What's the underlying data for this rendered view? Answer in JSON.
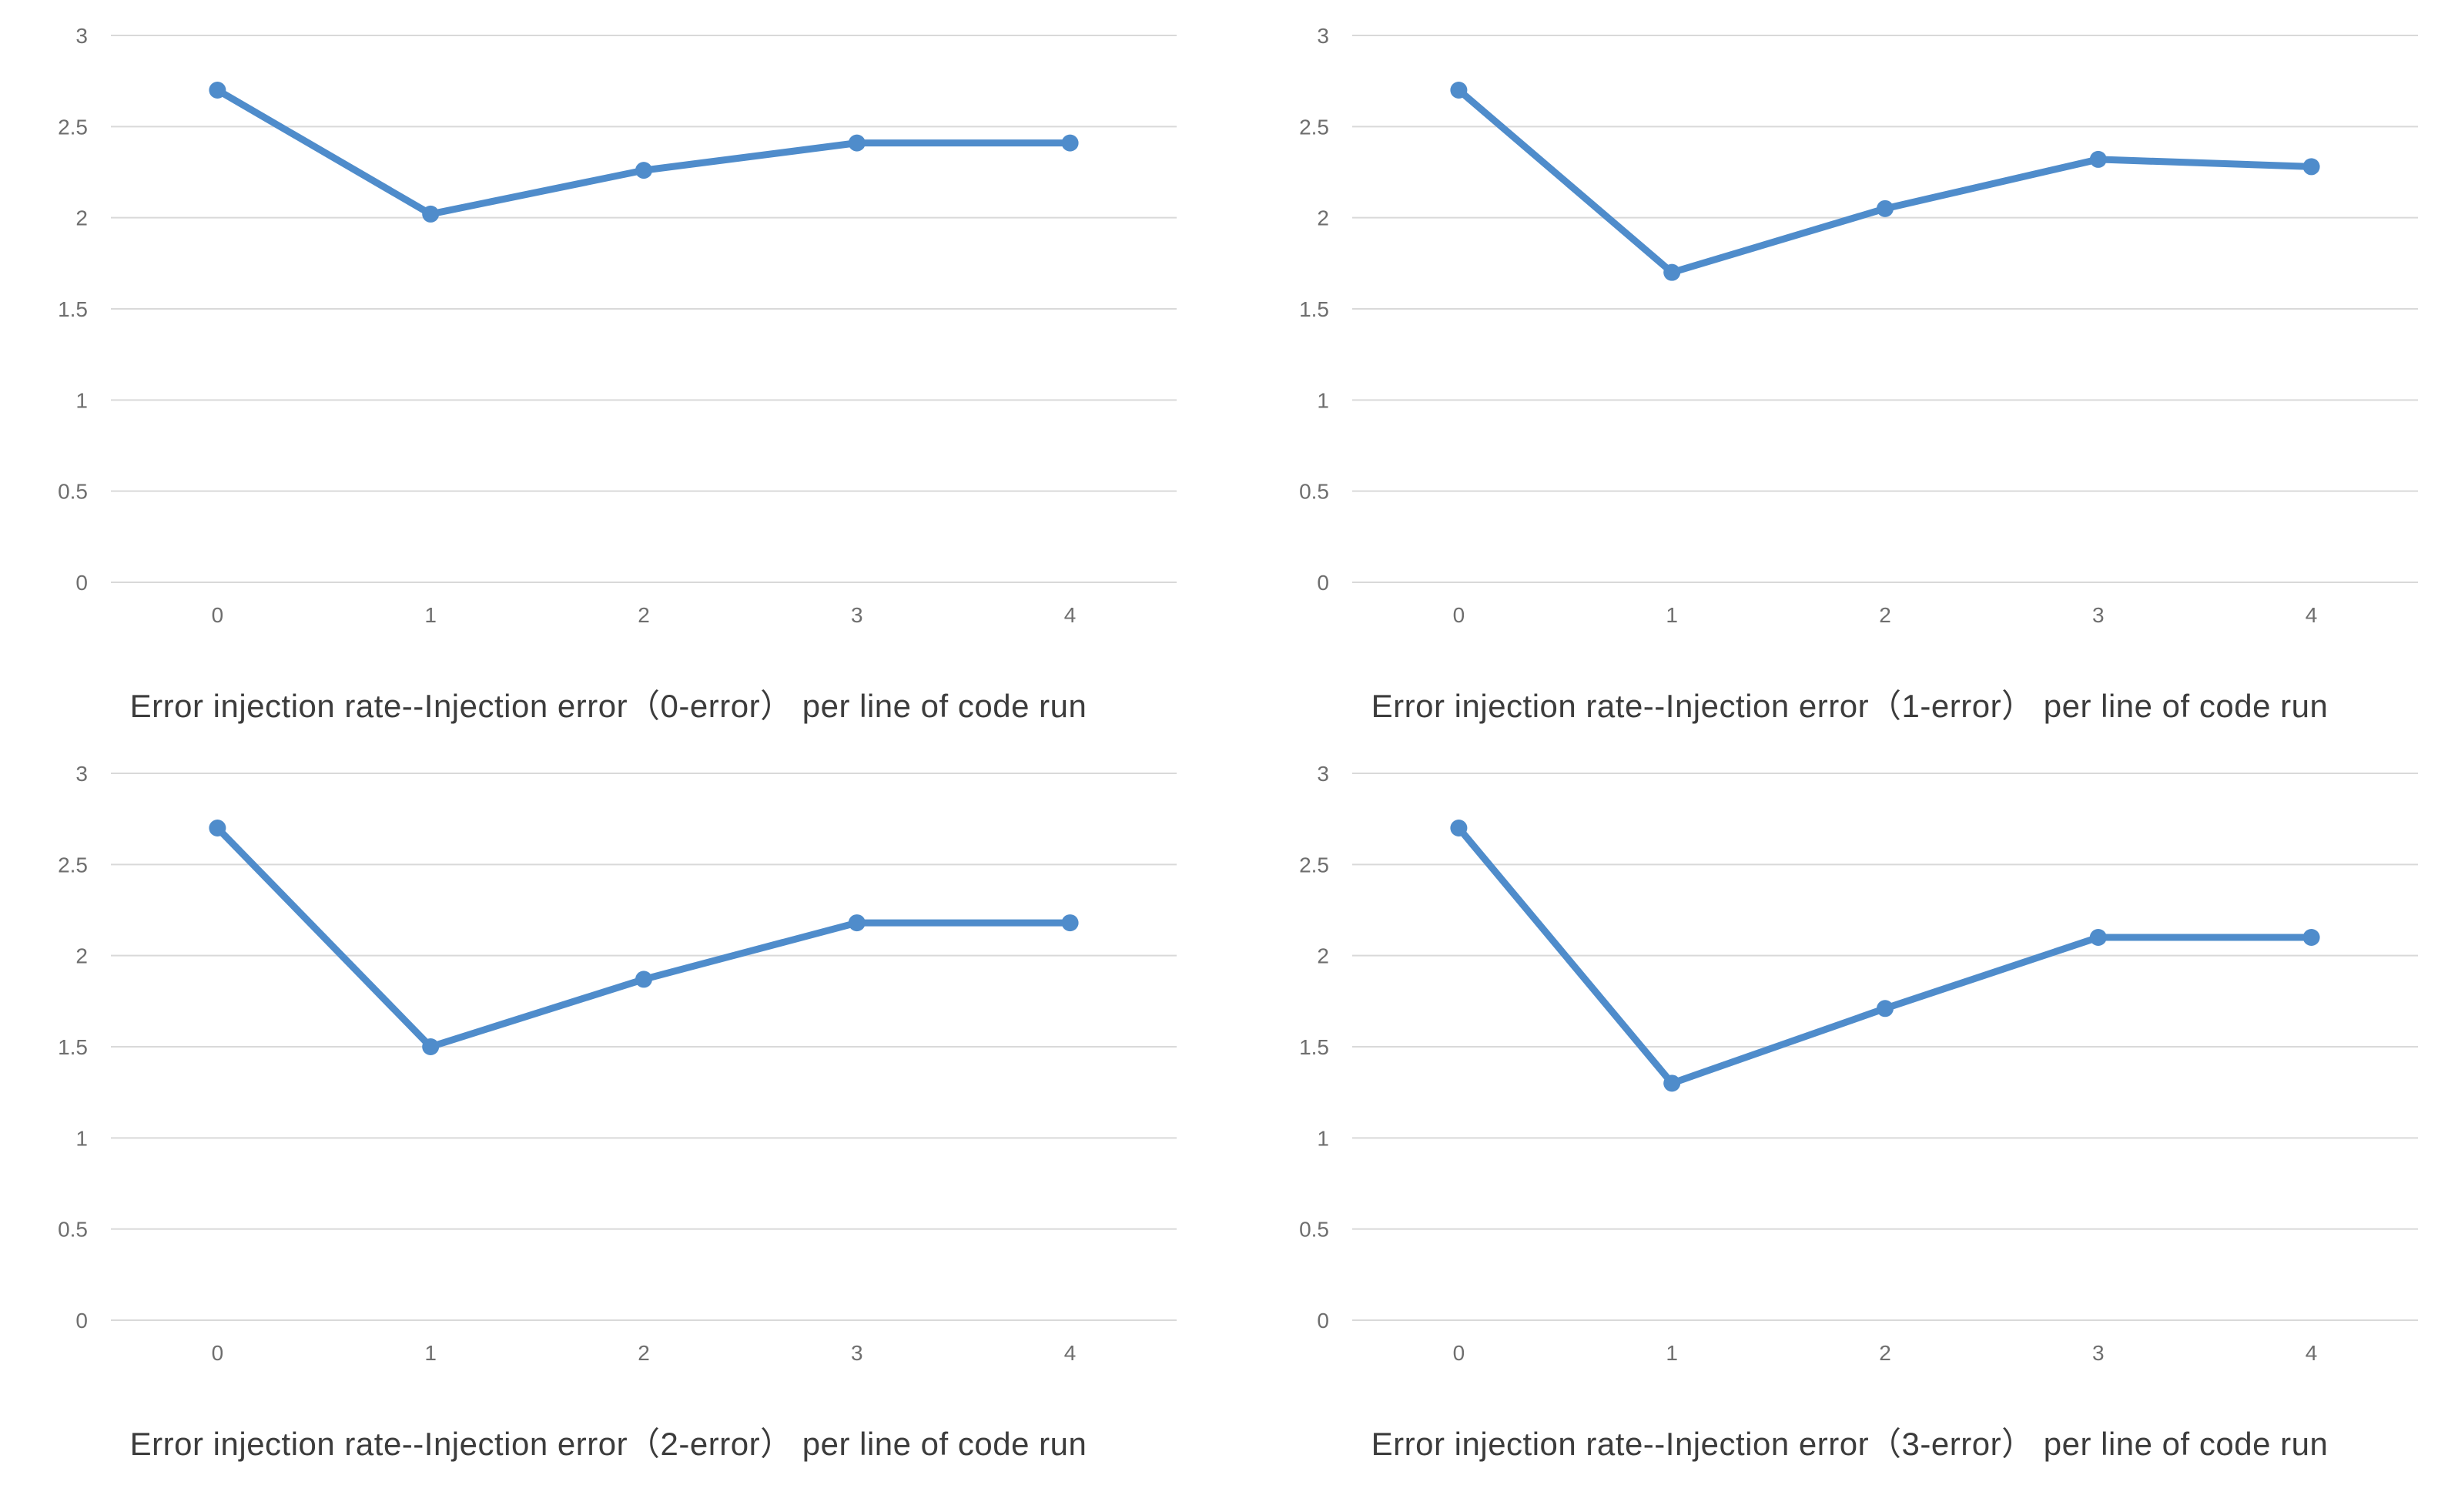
{
  "colors": {
    "line": "#4F8CCB",
    "marker": "#4F8CCB",
    "gridline": "#D9D9D9",
    "tick_label": "#6E6E6E",
    "title": "#3C3C3C",
    "background": "#FFFFFF"
  },
  "axis_defaults": {
    "ylim": [
      0,
      3
    ],
    "yticks": [
      0,
      0.5,
      1,
      1.5,
      2,
      2.5,
      3
    ],
    "ytick_labels": [
      "0",
      "0.5",
      "1",
      "1.5",
      "2",
      "2.5",
      "3"
    ],
    "xtick_labels": [
      "0",
      "1",
      "2",
      "3",
      "4"
    ],
    "grid": "horizontal-only",
    "legend": "none"
  },
  "chart_data": [
    {
      "type": "line",
      "title": "Error injection rate--Injection error（0-error） per line of code run",
      "x": [
        0,
        1,
        2,
        3,
        4
      ],
      "series": [
        {
          "name": "error-injection-rate",
          "values": [
            2.7,
            2.02,
            2.26,
            2.41,
            2.41
          ]
        }
      ],
      "xlabel": "",
      "ylabel": "",
      "ylim": [
        0,
        3
      ],
      "xtick_labels": [
        "0",
        "1",
        "2",
        "3",
        "4"
      ],
      "ytick_labels": [
        "0",
        "0.5",
        "1",
        "1.5",
        "2",
        "2.5",
        "3"
      ]
    },
    {
      "type": "line",
      "title": "Error injection rate--Injection error（1-error） per line of code run",
      "x": [
        0,
        1,
        2,
        3,
        4
      ],
      "series": [
        {
          "name": "error-injection-rate",
          "values": [
            2.7,
            1.7,
            2.05,
            2.32,
            2.28
          ]
        }
      ],
      "xlabel": "",
      "ylabel": "",
      "ylim": [
        0,
        3
      ],
      "xtick_labels": [
        "0",
        "1",
        "2",
        "3",
        "4"
      ],
      "ytick_labels": [
        "0",
        "0.5",
        "1",
        "1.5",
        "2",
        "2.5",
        "3"
      ]
    },
    {
      "type": "line",
      "title": "Error injection rate--Injection error（2-error） per line of code run",
      "x": [
        0,
        1,
        2,
        3,
        4
      ],
      "series": [
        {
          "name": "error-injection-rate",
          "values": [
            2.7,
            1.5,
            1.87,
            2.18,
            2.18
          ]
        }
      ],
      "xlabel": "",
      "ylabel": "",
      "ylim": [
        0,
        3
      ],
      "xtick_labels": [
        "0",
        "1",
        "2",
        "3",
        "4"
      ],
      "ytick_labels": [
        "0",
        "0.5",
        "1",
        "1.5",
        "2",
        "2.5",
        "3"
      ]
    },
    {
      "type": "line",
      "title": "Error injection rate--Injection error（3-error） per line of code run",
      "x": [
        0,
        1,
        2,
        3,
        4
      ],
      "series": [
        {
          "name": "error-injection-rate",
          "values": [
            2.7,
            1.3,
            1.71,
            2.1,
            2.1
          ]
        }
      ],
      "xlabel": "",
      "ylabel": "",
      "ylim": [
        0,
        3
      ],
      "xtick_labels": [
        "0",
        "1",
        "2",
        "3",
        "4"
      ],
      "ytick_labels": [
        "0",
        "0.5",
        "1",
        "1.5",
        "2",
        "2.5",
        "3"
      ]
    }
  ]
}
